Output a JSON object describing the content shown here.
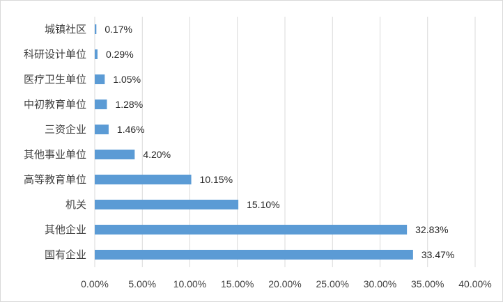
{
  "chart_data": {
    "type": "bar",
    "orientation": "horizontal",
    "categories": [
      "城镇社区",
      "科研设计单位",
      "医疗卫生单位",
      "中初教育单位",
      "三资企业",
      "其他事业单位",
      "高等教育单位",
      "机关",
      "其他企业",
      "国有企业"
    ],
    "values": [
      0.17,
      0.29,
      1.05,
      1.28,
      1.46,
      4.2,
      10.15,
      15.1,
      32.83,
      33.47
    ],
    "data_labels": [
      "0.17%",
      "0.29%",
      "1.05%",
      "1.28%",
      "1.46%",
      "4.20%",
      "10.15%",
      "15.10%",
      "32.83%",
      "33.47%"
    ],
    "xlim": [
      0,
      40
    ],
    "x_ticks": [
      0,
      5,
      10,
      15,
      20,
      25,
      30,
      35,
      40
    ],
    "x_tick_labels": [
      "0.00%",
      "5.00%",
      "10.00%",
      "15.00%",
      "20.00%",
      "25.00%",
      "30.00%",
      "35.00%",
      "40.00%"
    ],
    "grid": "vertical",
    "legend": "none",
    "colors": {
      "bar": "#5b9bd5",
      "grid": "#d9d9d9"
    }
  }
}
